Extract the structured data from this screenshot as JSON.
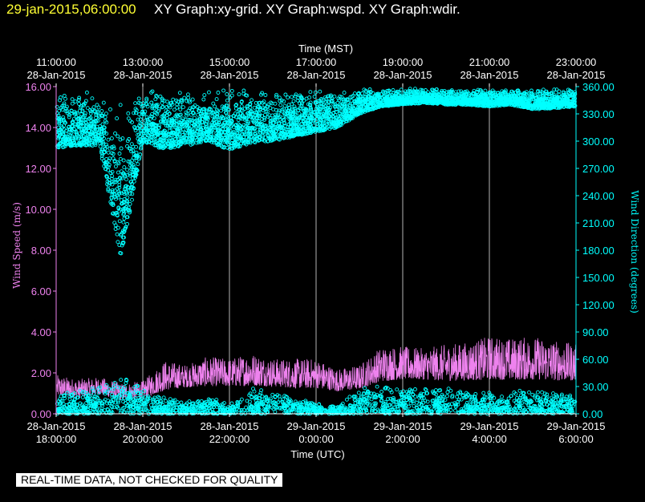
{
  "header": {
    "date": "29-jan-2015,06:00:00",
    "title": "XY Graph:xy-grid.  XY Graph:wspd.  XY Graph:wdir."
  },
  "disclaimer": "REAL-TIME DATA, NOT CHECKED FOR QUALITY",
  "colors": {
    "background": "#000000",
    "grid": "#ffffff",
    "wind_speed": "#ee82ee",
    "wind_direction": "#00ffff",
    "header_date": "#ffff33",
    "axis_text": "#ffffff"
  },
  "chart_data": {
    "type": "line",
    "title": "",
    "grid": true,
    "x_top": {
      "label": "Time (MST)",
      "ticks": [
        {
          "time": "11:00:00",
          "date": "28-Jan-2015"
        },
        {
          "time": "13:00:00",
          "date": "28-Jan-2015"
        },
        {
          "time": "15:00:00",
          "date": "28-Jan-2015"
        },
        {
          "time": "17:00:00",
          "date": "28-Jan-2015"
        },
        {
          "time": "19:00:00",
          "date": "28-Jan-2015"
        },
        {
          "time": "21:00:00",
          "date": "28-Jan-2015"
        },
        {
          "time": "23:00:00",
          "date": "28-Jan-2015"
        }
      ]
    },
    "x_bottom": {
      "label": "Time (UTC)",
      "range": [
        "2015-01-28 18:00:00",
        "2015-01-29 06:00:00"
      ],
      "ticks": [
        {
          "date": "28-Jan-2015",
          "time": "18:00:00"
        },
        {
          "date": "28-Jan-2015",
          "time": "20:00:00"
        },
        {
          "date": "28-Jan-2015",
          "time": "22:00:00"
        },
        {
          "date": "29-Jan-2015",
          "time": "0:00:00"
        },
        {
          "date": "29-Jan-2015",
          "time": "2:00:00"
        },
        {
          "date": "29-Jan-2015",
          "time": "4:00:00"
        },
        {
          "date": "29-Jan-2015",
          "time": "6:00:00"
        }
      ]
    },
    "y_left": {
      "label": "Wind Speed (m/s)",
      "range": [
        0,
        16
      ],
      "ticks": [
        "0.00",
        "2.00",
        "4.00",
        "6.00",
        "8.00",
        "10.00",
        "12.00",
        "14.00",
        "16.00"
      ]
    },
    "y_right": {
      "label": "Wind Direction (degrees)",
      "range": [
        0,
        360
      ],
      "ticks": [
        "0.00",
        "30.00",
        "60.00",
        "90.00",
        "120.00",
        "150.00",
        "180.00",
        "210.00",
        "240.00",
        "270.00",
        "300.00",
        "330.00",
        "360.00"
      ]
    },
    "series": [
      {
        "name": "wspd",
        "axis": "left",
        "style": "line",
        "x": [
          "2015-01-28 18:00",
          "2015-01-28 18:30",
          "2015-01-28 19:00",
          "2015-01-28 19:30",
          "2015-01-28 20:00",
          "2015-01-28 20:30",
          "2015-01-28 21:00",
          "2015-01-28 21:30",
          "2015-01-28 22:00",
          "2015-01-28 22:30",
          "2015-01-28 23:00",
          "2015-01-28 23:30",
          "2015-01-29 00:00",
          "2015-01-29 00:30",
          "2015-01-29 01:00",
          "2015-01-29 01:30",
          "2015-01-29 02:00",
          "2015-01-29 02:30",
          "2015-01-29 03:00",
          "2015-01-29 03:30",
          "2015-01-29 04:00",
          "2015-01-29 04:30",
          "2015-01-29 05:00",
          "2015-01-29 05:30",
          "2015-01-29 06:00"
        ],
        "low": [
          0.7,
          0.6,
          0.8,
          0.5,
          0.6,
          0.9,
          1.1,
          1.1,
          1.1,
          1.1,
          1.1,
          1.0,
          1.0,
          0.9,
          1.0,
          1.3,
          1.4,
          1.4,
          1.3,
          1.3,
          1.3,
          1.3,
          1.3,
          1.3,
          1.3
        ],
        "high": [
          1.9,
          1.7,
          1.8,
          1.5,
          1.6,
          2.6,
          2.4,
          2.8,
          2.7,
          3.0,
          2.7,
          2.7,
          2.7,
          2.2,
          2.4,
          3.3,
          3.3,
          3.2,
          3.4,
          3.5,
          3.8,
          3.7,
          3.8,
          3.6,
          3.4
        ]
      },
      {
        "name": "wdir",
        "axis": "right",
        "style": "points",
        "x": [
          "2015-01-28 18:00",
          "2015-01-28 18:30",
          "2015-01-28 19:00",
          "2015-01-28 19:30",
          "2015-01-28 20:00",
          "2015-01-28 20:30",
          "2015-01-28 21:00",
          "2015-01-28 21:30",
          "2015-01-28 22:00",
          "2015-01-28 22:30",
          "2015-01-28 23:00",
          "2015-01-28 23:30",
          "2015-01-29 00:00",
          "2015-01-29 00:30",
          "2015-01-29 01:00",
          "2015-01-29 01:30",
          "2015-01-29 02:00",
          "2015-01-29 02:30",
          "2015-01-29 03:00",
          "2015-01-29 03:30",
          "2015-01-29 04:00",
          "2015-01-29 04:30",
          "2015-01-29 05:00",
          "2015-01-29 05:30",
          "2015-01-29 06:00"
        ],
        "low": [
          292,
          295,
          295,
          170,
          300,
          290,
          295,
          300,
          290,
          298,
          300,
          305,
          310,
          315,
          330,
          338,
          340,
          342,
          340,
          340,
          338,
          340,
          335,
          336,
          338
        ],
        "high": [
          358,
          358,
          358,
          355,
          358,
          358,
          358,
          358,
          358,
          358,
          358,
          358,
          358,
          358,
          358,
          358,
          358,
          358,
          358,
          358,
          358,
          358,
          358,
          358,
          358
        ]
      },
      {
        "name": "wdir-low",
        "axis": "right",
        "style": "points",
        "x": [
          "2015-01-28 18:00",
          "2015-01-28 18:30",
          "2015-01-28 19:00",
          "2015-01-28 19:30",
          "2015-01-28 20:00",
          "2015-01-28 20:30",
          "2015-01-28 21:00",
          "2015-01-28 21:30",
          "2015-01-28 22:00",
          "2015-01-28 22:30",
          "2015-01-28 23:00",
          "2015-01-28 23:30",
          "2015-01-29 00:00",
          "2015-01-29 00:30",
          "2015-01-29 01:00",
          "2015-01-29 01:30",
          "2015-01-29 02:00",
          "2015-01-29 02:30",
          "2015-01-29 03:00",
          "2015-01-29 03:30",
          "2015-01-29 04:00",
          "2015-01-29 04:30",
          "2015-01-29 05:00",
          "2015-01-29 05:30",
          "2015-01-29 06:00"
        ],
        "low": [
          0,
          0,
          0,
          0,
          0,
          0,
          0,
          0,
          0,
          0,
          0,
          0,
          0,
          0,
          0,
          0,
          0,
          0,
          0,
          0,
          0,
          0,
          0,
          0,
          0
        ],
        "high": [
          22,
          25,
          30,
          40,
          30,
          18,
          15,
          18,
          12,
          30,
          25,
          18,
          12,
          8,
          30,
          32,
          28,
          30,
          28,
          26,
          25,
          25,
          26,
          25,
          20
        ]
      }
    ]
  }
}
